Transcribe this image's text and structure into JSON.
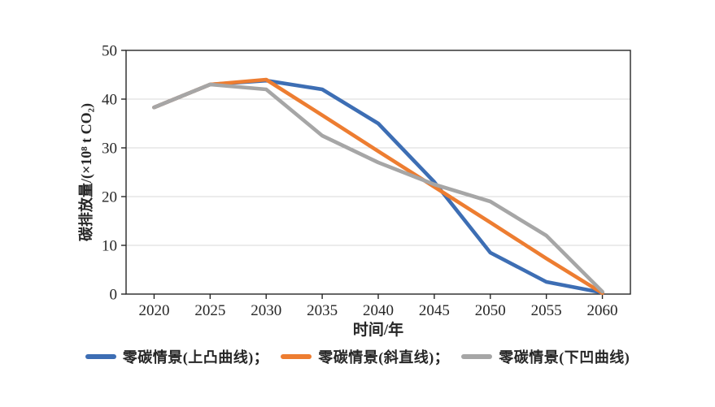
{
  "page": {
    "background": "#ffffff"
  },
  "chart_data": {
    "type": "line",
    "title": "",
    "xlabel": "时间/年",
    "ylabel": "碳排放量/(×10⁸ t CO₂)",
    "x_categories": [
      "2020",
      "2025",
      "2030",
      "2035",
      "2040",
      "2045",
      "2050",
      "2055",
      "2060"
    ],
    "yticks": [
      "0",
      "10",
      "20",
      "30",
      "40",
      "50"
    ],
    "ylim": [
      0,
      50
    ],
    "grid": "horizontal",
    "gridline_color": "#d9d9d9",
    "axis_color": "#262626",
    "legend_position": "bottom",
    "series": [
      {
        "name": "零碳情景(上凸曲线)",
        "legend_label": "零碳情景(上凸曲线)；",
        "shape": "convex",
        "color": "#3D6EB4",
        "values": [
          38.3,
          43,
          43.8,
          42,
          35,
          23,
          8.5,
          2.5,
          0.3
        ]
      },
      {
        "name": "零碳情景(斜直线)",
        "legend_label": "零碳情景(斜直线)；",
        "shape": "linear",
        "color": "#ED7D31",
        "values": [
          38.3,
          43,
          44,
          36.7,
          29.3,
          22,
          14.7,
          7.3,
          0.2
        ]
      },
      {
        "name": "零碳情景(下凹曲线)",
        "legend_label": "零碳情景(下凹曲线)",
        "shape": "concave",
        "color": "#A6A6A6",
        "values": [
          38.3,
          43,
          42,
          32.5,
          27,
          22.5,
          19,
          12,
          0.5
        ]
      }
    ]
  }
}
